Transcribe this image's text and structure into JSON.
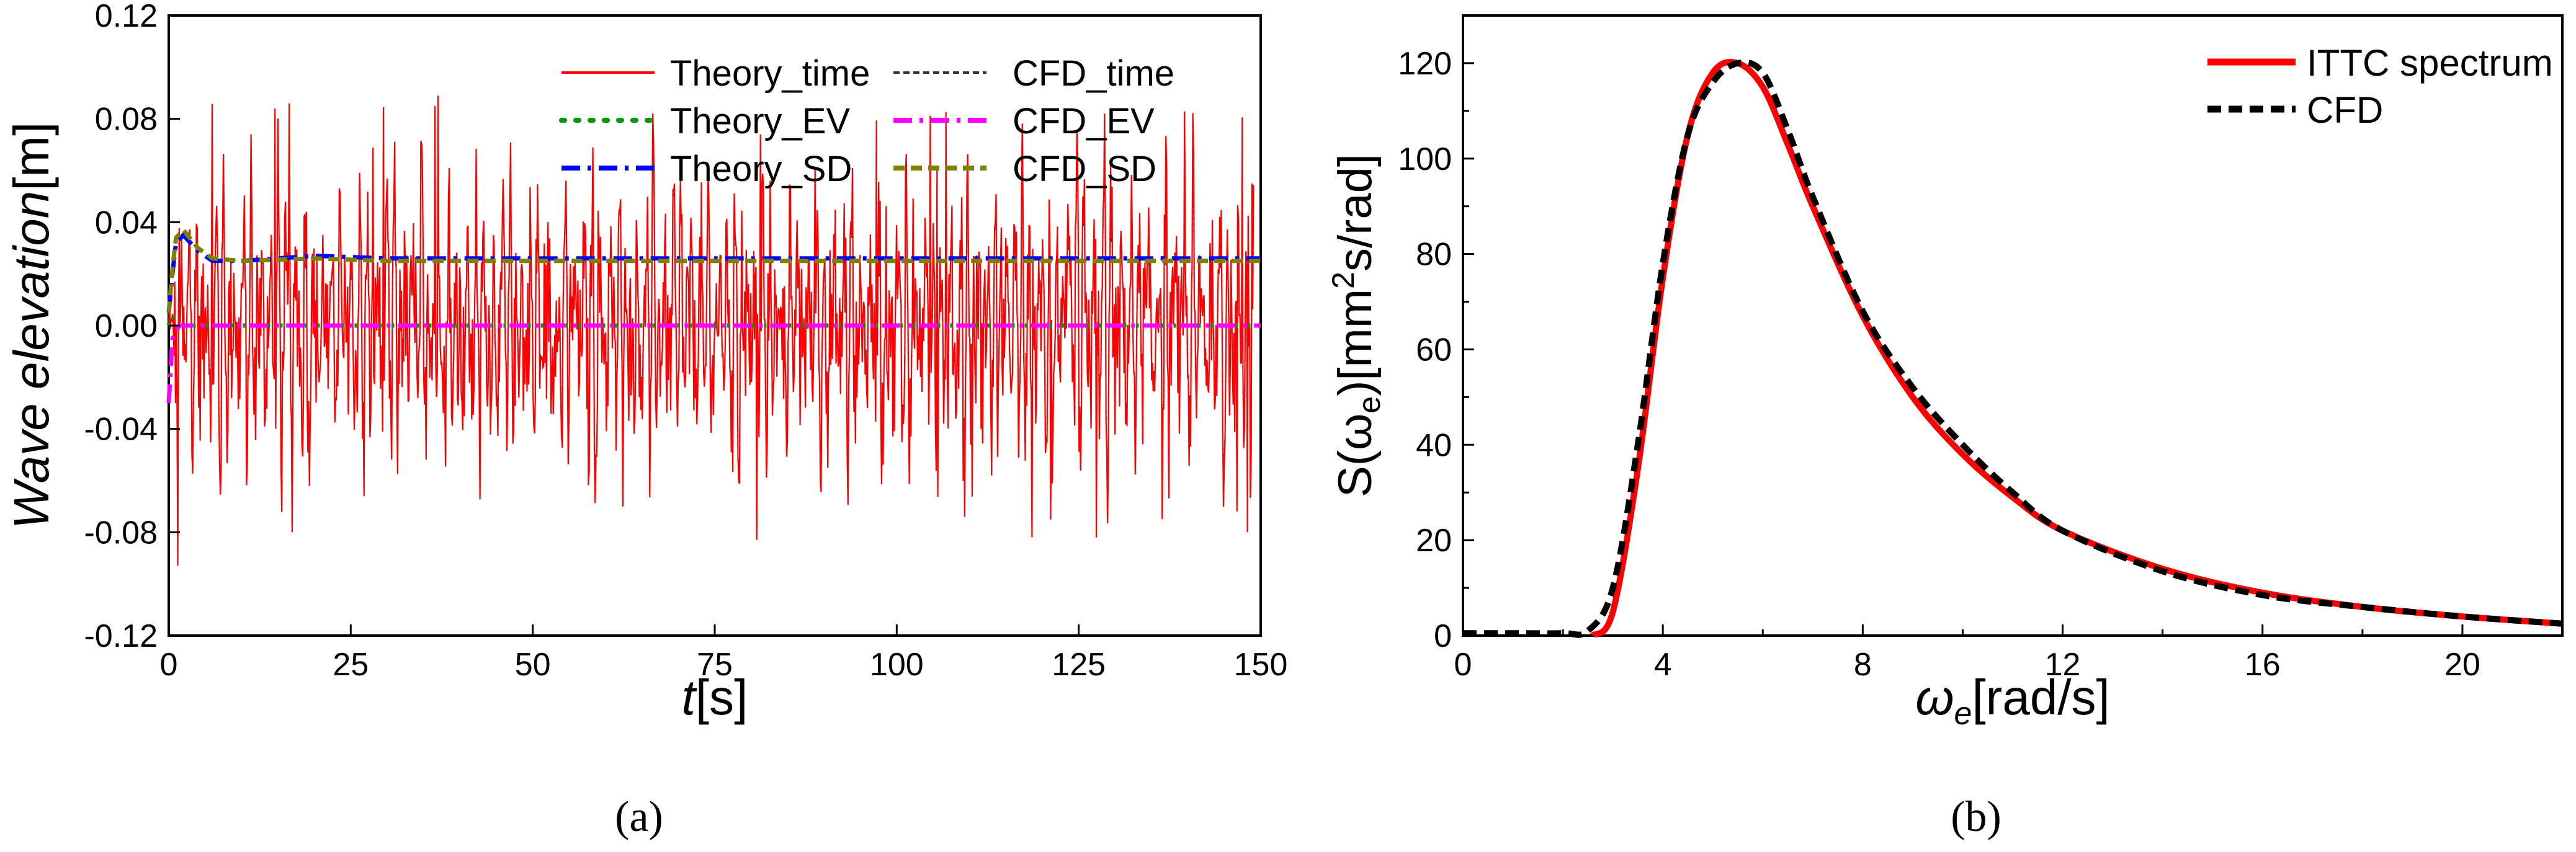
{
  "chart_data": [
    {
      "type": "line",
      "panel_label": "a",
      "title": "",
      "xlabel_italic": "t",
      "xlabel_unit": "[s]",
      "ylabel_italic": "Wave elevation",
      "ylabel_unit": "[m]",
      "xlim": [
        0,
        150
      ],
      "ylim": [
        -0.12,
        0.12
      ],
      "xticks": [
        0,
        25,
        50,
        75,
        100,
        125,
        150
      ],
      "yticks": [
        -0.12,
        -0.08,
        -0.04,
        0.0,
        0.04,
        0.08,
        0.12
      ],
      "yticks_labels": [
        "-0.12",
        "-0.08",
        "-0.04",
        "0.00",
        "0.04",
        "0.08",
        "0.12"
      ],
      "grid": false,
      "legend_position": "top-right",
      "legend": [
        {
          "name": "Theory_time",
          "color": "#ff0000",
          "style": "solid"
        },
        {
          "name": "CFD_time",
          "color": "#333333",
          "style": "dash"
        },
        {
          "name": "Theory_EV",
          "color": "#009900",
          "style": "dot"
        },
        {
          "name": "CFD_EV",
          "color": "#ff00ff",
          "style": "dashdot"
        },
        {
          "name": "Theory_SD",
          "color": "#0000ff",
          "style": "dashdot"
        },
        {
          "name": "CFD_SD",
          "color": "#808000",
          "style": "dash"
        }
      ],
      "series": [
        {
          "name": "Theory_time",
          "description": "random irregular wave elevation time series, amplitude roughly within -0.09 to 0.09 m",
          "min": -0.093,
          "max": 0.093
        },
        {
          "name": "CFD_time",
          "description": "CFD wave elevation, closely follows Theory_time"
        },
        {
          "name": "Theory_EV",
          "x": [
            0,
            0.5,
            1,
            2,
            3,
            150
          ],
          "values": [
            0.0,
            0.004,
            0.001,
            0.0,
            0.0,
            0.0
          ]
        },
        {
          "name": "CFD_EV",
          "x": [
            0,
            0.5,
            1,
            1.5,
            2,
            3,
            150
          ],
          "values": [
            -0.03,
            -0.005,
            -0.002,
            0.0,
            0.0,
            0.0,
            0.0
          ]
        },
        {
          "name": "Theory_SD",
          "x": [
            0,
            0.5,
            1,
            2,
            4,
            6,
            10,
            20,
            30,
            150
          ],
          "values": [
            0.005,
            0.02,
            0.032,
            0.035,
            0.029,
            0.025,
            0.025,
            0.027,
            0.026,
            0.026
          ]
        },
        {
          "name": "CFD_SD",
          "x": [
            0,
            0.5,
            1,
            2,
            4,
            6,
            10,
            20,
            30,
            150
          ],
          "values": [
            0.005,
            0.022,
            0.034,
            0.037,
            0.03,
            0.026,
            0.025,
            0.026,
            0.025,
            0.025
          ]
        }
      ]
    },
    {
      "type": "line",
      "panel_label": "b",
      "title": "",
      "xlabel": "[rad/s]",
      "xlabel_symbol": "ω",
      "xlabel_sub": "e",
      "ylabel_pre": "S(ω",
      "ylabel_sub": "e",
      "ylabel_mid": ")[mm",
      "ylabel_sup": "2",
      "ylabel_post": "s/rad]",
      "xlim": [
        0,
        22
      ],
      "ylim": [
        0,
        130
      ],
      "xticks": [
        0,
        4,
        8,
        12,
        16,
        20
      ],
      "yticks": [
        0,
        20,
        40,
        60,
        80,
        100,
        120
      ],
      "grid": false,
      "legend_position": "top-right",
      "series": [
        {
          "name": "ITTC spectrum",
          "color": "#ff0000",
          "style": "solid",
          "x": [
            2.6,
            3.0,
            3.5,
            4.0,
            4.5,
            5.0,
            5.5,
            6.0,
            6.5,
            7.0,
            8.0,
            9.0,
            10.0,
            11.0,
            12.0,
            14.0,
            16.0,
            18.0,
            20.0,
            22.0
          ],
          "values": [
            0,
            5,
            35,
            75,
            105,
            118,
            120,
            115,
            103,
            90,
            67,
            50,
            38,
            29,
            22,
            14,
            9,
            6,
            4,
            2.5
          ]
        },
        {
          "name": "CFD",
          "color": "#000000",
          "style": "dash",
          "x": [
            0,
            1.0,
            2.0,
            2.5,
            3.0,
            3.5,
            4.0,
            4.5,
            5.0,
            5.5,
            6.0,
            6.5,
            7.0,
            8.0,
            9.0,
            10.0,
            11.0,
            12.0,
            14.0,
            16.0,
            18.0,
            20.0,
            22.0
          ],
          "values": [
            0.5,
            0.5,
            0.5,
            1,
            10,
            40,
            78,
            105,
            116,
            120,
            118,
            106,
            92,
            68,
            52,
            40,
            30,
            22,
            13.5,
            8.5,
            6,
            4,
            2.5
          ]
        }
      ]
    }
  ],
  "captions": {
    "a": "(a)",
    "b": "(b)"
  }
}
